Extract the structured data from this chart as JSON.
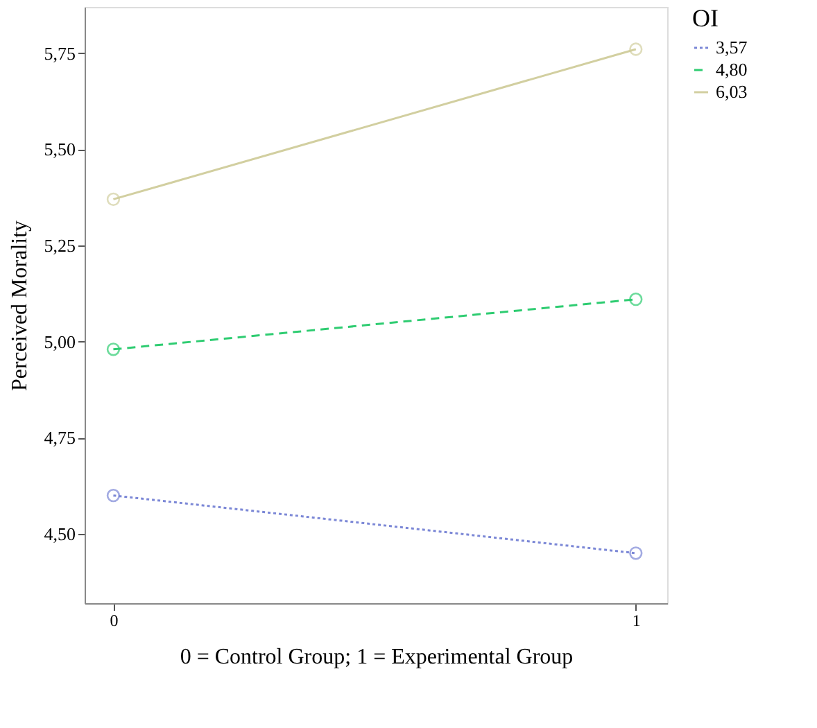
{
  "chart_data": {
    "type": "line",
    "xlabel": "0 = Control Group; 1 = Experimental Group",
    "ylabel": "Perceived Morality",
    "legend_title": "OI",
    "legend": "top right",
    "grid": false,
    "marker": "circle",
    "x": [
      0,
      1
    ],
    "xlim": [
      -0.055,
      1.06
    ],
    "xticks": [
      0,
      1
    ],
    "ylim": [
      4.32,
      5.87
    ],
    "yticks": [
      {
        "value": 4.5,
        "label": "4,50"
      },
      {
        "value": 4.75,
        "label": "4,75"
      },
      {
        "value": 5.0,
        "label": "5,00"
      },
      {
        "value": 5.25,
        "label": "5,25"
      },
      {
        "value": 5.5,
        "label": "5,50"
      },
      {
        "value": 5.75,
        "label": "5,75"
      }
    ],
    "series": [
      {
        "name": "3,57",
        "color": "#7b87d6",
        "line_style": "dotted",
        "values": [
          4.6,
          4.45
        ]
      },
      {
        "name": "4,80",
        "color": "#2ecc71",
        "line_style": "dashed",
        "values": [
          4.98,
          5.11
        ]
      },
      {
        "name": "6,03",
        "color": "#d2cfa0",
        "line_style": "solid",
        "values": [
          5.37,
          5.76
        ]
      }
    ]
  }
}
